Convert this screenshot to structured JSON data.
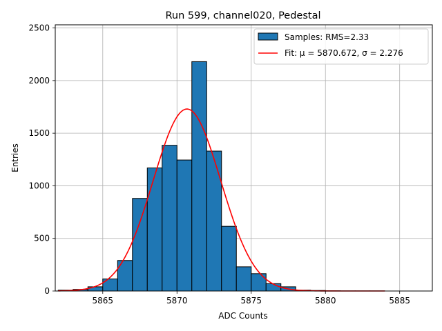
{
  "chart_data": {
    "type": "bar",
    "title": "Run 599, channel020, Pedestal",
    "xlabel": "ADC Counts",
    "ylabel": "Entries",
    "xlim": [
      5861.8,
      5887.2
    ],
    "ylim": [
      0,
      2530
    ],
    "xticks": [
      5865,
      5870,
      5875,
      5880,
      5885
    ],
    "yticks": [
      0,
      500,
      1000,
      1500,
      2000,
      2500
    ],
    "grid": true,
    "legend": {
      "placement": "top-right",
      "entries": [
        {
          "label": "Samples: RMS=2.33",
          "kind": "patch"
        },
        {
          "label": "Fit: μ = 5870.672, σ = 2.276",
          "kind": "line"
        }
      ]
    },
    "histogram": {
      "bin_width": 1,
      "bin_left_edges": [
        5862,
        5863,
        5864,
        5865,
        5866,
        5867,
        5868,
        5869,
        5870,
        5871,
        5872,
        5873,
        5874,
        5875,
        5876,
        5877,
        5878,
        5879,
        5880,
        5881,
        5882,
        5883,
        5884,
        5885
      ],
      "counts": [
        8,
        15,
        40,
        115,
        290,
        880,
        1170,
        1385,
        1245,
        2180,
        1330,
        615,
        230,
        165,
        70,
        40,
        8,
        5,
        2,
        1,
        1,
        1,
        0,
        0
      ]
    },
    "fit": {
      "mu": 5870.672,
      "sigma": 2.276,
      "peak": 1730,
      "x_range": [
        5862,
        5884
      ]
    },
    "colors": {
      "bars": "#1f77b4",
      "bar_edge": "#000000",
      "fit_line": "#ff0000",
      "grid": "#b0b0b0"
    }
  }
}
